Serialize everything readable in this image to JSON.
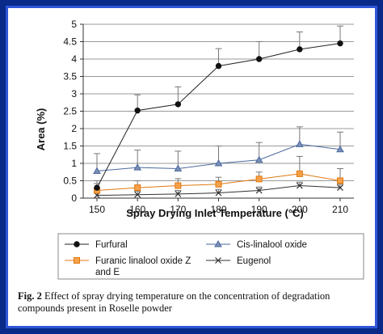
{
  "chart_data": {
    "type": "line",
    "x": [
      150,
      160,
      170,
      180,
      190,
      200,
      210
    ],
    "xlabel": "Spray Drying Inlet Temperature (°C)",
    "ylabel": "Area (%)",
    "ylim": [
      0,
      5
    ],
    "yticks": [
      "0",
      "0.5",
      "1",
      "1.5",
      "2",
      "2.5",
      "3",
      "3.5",
      "4",
      "4.5",
      "5"
    ],
    "xticks": [
      "150",
      "160",
      "170",
      "180",
      "190",
      "200",
      "210"
    ],
    "grid": "horizontal",
    "legend_position": "bottom",
    "series": [
      {
        "name": "Furfural",
        "marker": "circle",
        "color": "#222222",
        "values": [
          0.3,
          2.52,
          2.7,
          3.8,
          4.0,
          4.28,
          4.45
        ],
        "errors": [
          0.2,
          0.45,
          0.5,
          0.5,
          0.5,
          0.5,
          0.5
        ]
      },
      {
        "name": "Cis-linalool oxide",
        "marker": "triangle",
        "color": "#4a6aa0",
        "values": [
          0.78,
          0.88,
          0.85,
          1.0,
          1.1,
          1.55,
          1.4
        ],
        "errors": [
          0.5,
          0.5,
          0.5,
          0.5,
          0.5,
          0.5,
          0.5
        ]
      },
      {
        "name_line1": "Furanic linalool oxide Z",
        "name_line2": "and E",
        "marker": "square",
        "color": "#e07810",
        "values": [
          0.22,
          0.3,
          0.36,
          0.4,
          0.55,
          0.7,
          0.5
        ],
        "errors": [
          0.2,
          0.2,
          0.2,
          0.2,
          0.2,
          0.5,
          0.35
        ]
      },
      {
        "name": "Eugenol",
        "marker": "x",
        "color": "#333333",
        "values": [
          0.08,
          0.1,
          0.12,
          0.15,
          0.22,
          0.36,
          0.3
        ],
        "errors": [
          0.1,
          0.1,
          0.1,
          0.1,
          0.1,
          0.1,
          0.1
        ]
      }
    ]
  },
  "caption": {
    "label": "Fig. 2",
    "text": "Effect of spray drying temperature on the concentration of degradation compounds present in Roselle powder"
  }
}
